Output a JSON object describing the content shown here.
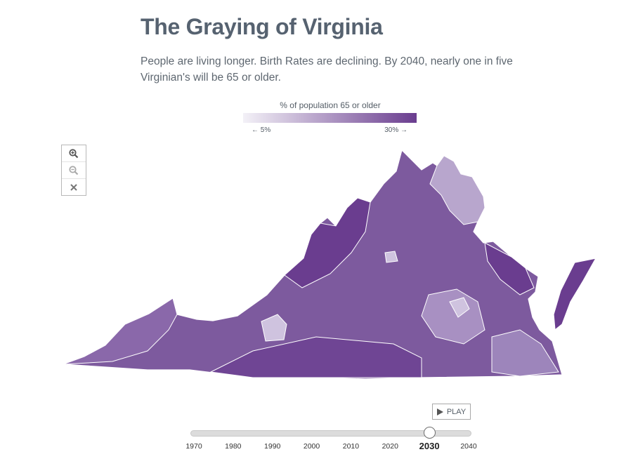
{
  "header": {
    "title": "The Graying of Virginia",
    "subtitle": "People are living longer. Birth Rates are declining. By 2040, nearly one in five Virginian's will be 65 or older."
  },
  "legend": {
    "title": "% of population 65 or older",
    "min_label": "← 5%",
    "max_label": "30% →",
    "color_low": "#f3f1f7",
    "color_high": "#6a3d8f"
  },
  "zoom": {
    "zoom_in_icon": "zoom-in-icon",
    "zoom_out_icon": "zoom-out-icon",
    "reset_icon": "close-icon"
  },
  "map": {
    "state": "Virginia",
    "fill_color": "#7d5a9e"
  },
  "timeline": {
    "play_label": "PLAY",
    "years": [
      "1970",
      "1980",
      "1990",
      "2000",
      "2010",
      "2020",
      "2030",
      "2040"
    ],
    "selected_year": "2030"
  }
}
